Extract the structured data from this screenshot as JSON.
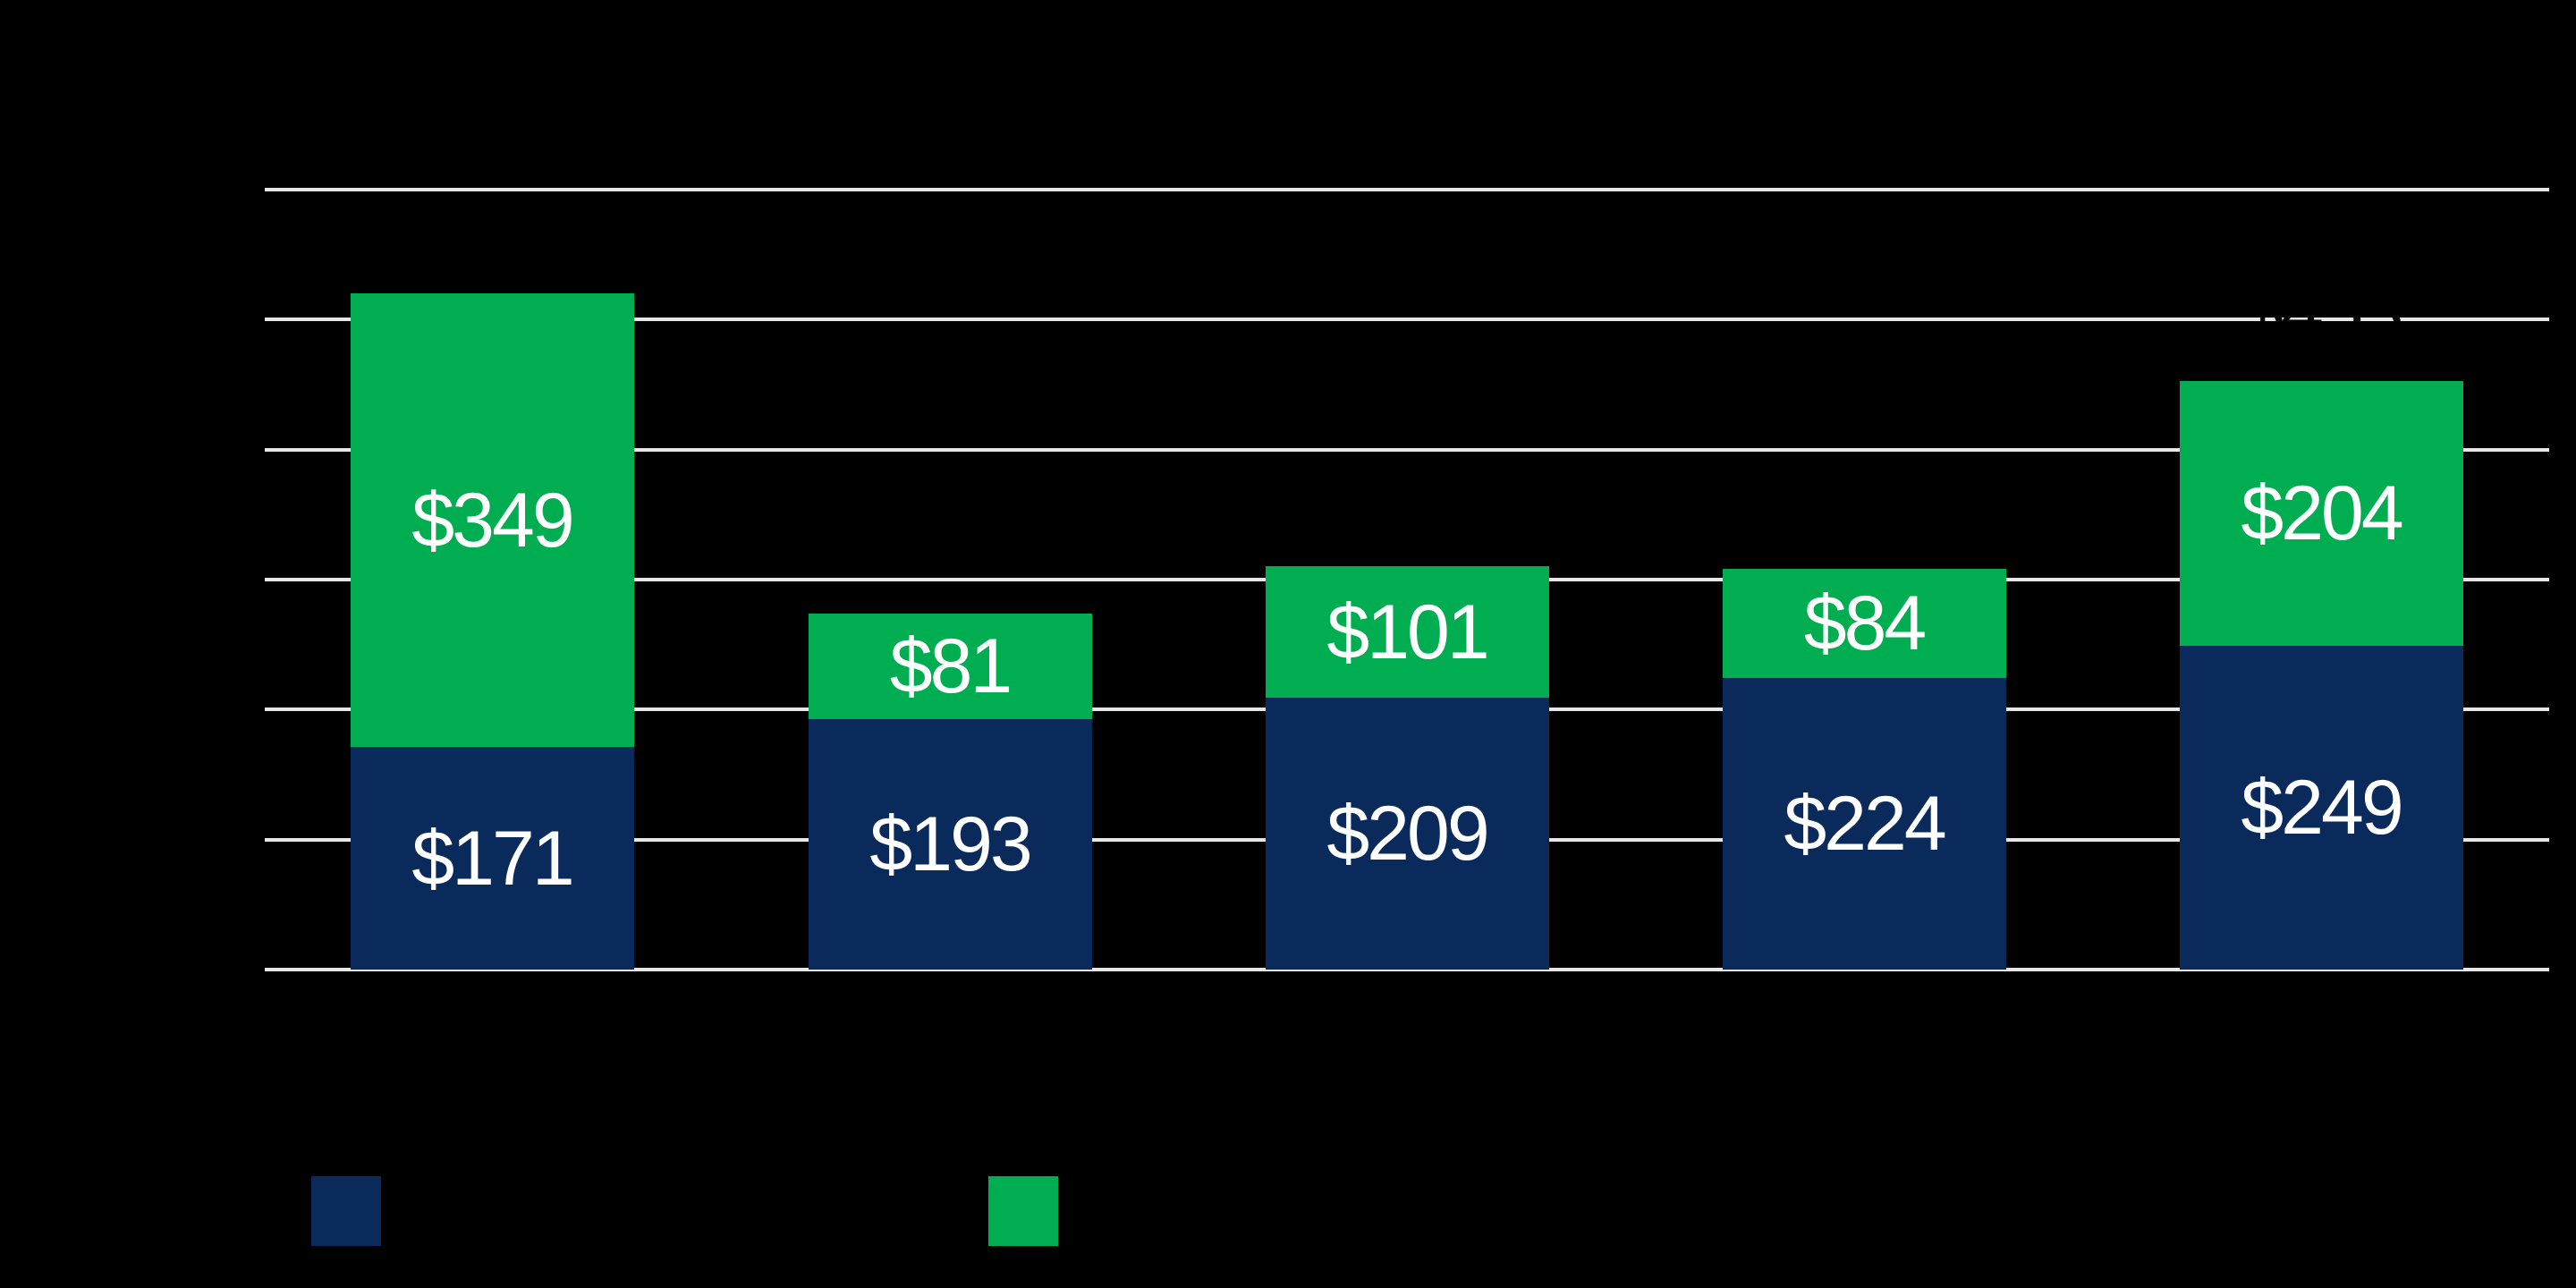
{
  "background_color": "#000000",
  "chart_data": {
    "type": "bar",
    "stacked": true,
    "title": "",
    "categories": [
      "",
      "",
      "",
      "",
      ""
    ],
    "series": [
      {
        "name": "",
        "color": "#0b2a5c",
        "values": [
          171,
          193,
          209,
          224,
          249
        ],
        "data_labels": [
          "$171",
          "$193",
          "$209",
          "$224",
          "$249"
        ],
        "label_color": "#ffffff"
      },
      {
        "name": "",
        "color": "#00ad50",
        "values": [
          349,
          81,
          101,
          84,
          204
        ],
        "data_labels": [
          "$349",
          "$81",
          "$101",
          "$84",
          "$204"
        ],
        "label_color": "#ffffff"
      }
    ],
    "total_labels": [
      "",
      "",
      "",
      "",
      "$453"
    ],
    "total_label_color": "#000000",
    "ylim": [
      0,
      600
    ],
    "grid_interval": 100,
    "grid": true,
    "grid_color": "#e7e7e7",
    "axis_tick_labels_visible": false,
    "legend_position": "bottom",
    "legend": [
      {
        "label": "",
        "color": "#0b2a5c"
      },
      {
        "label": "",
        "color": "#00ad50"
      }
    ]
  }
}
